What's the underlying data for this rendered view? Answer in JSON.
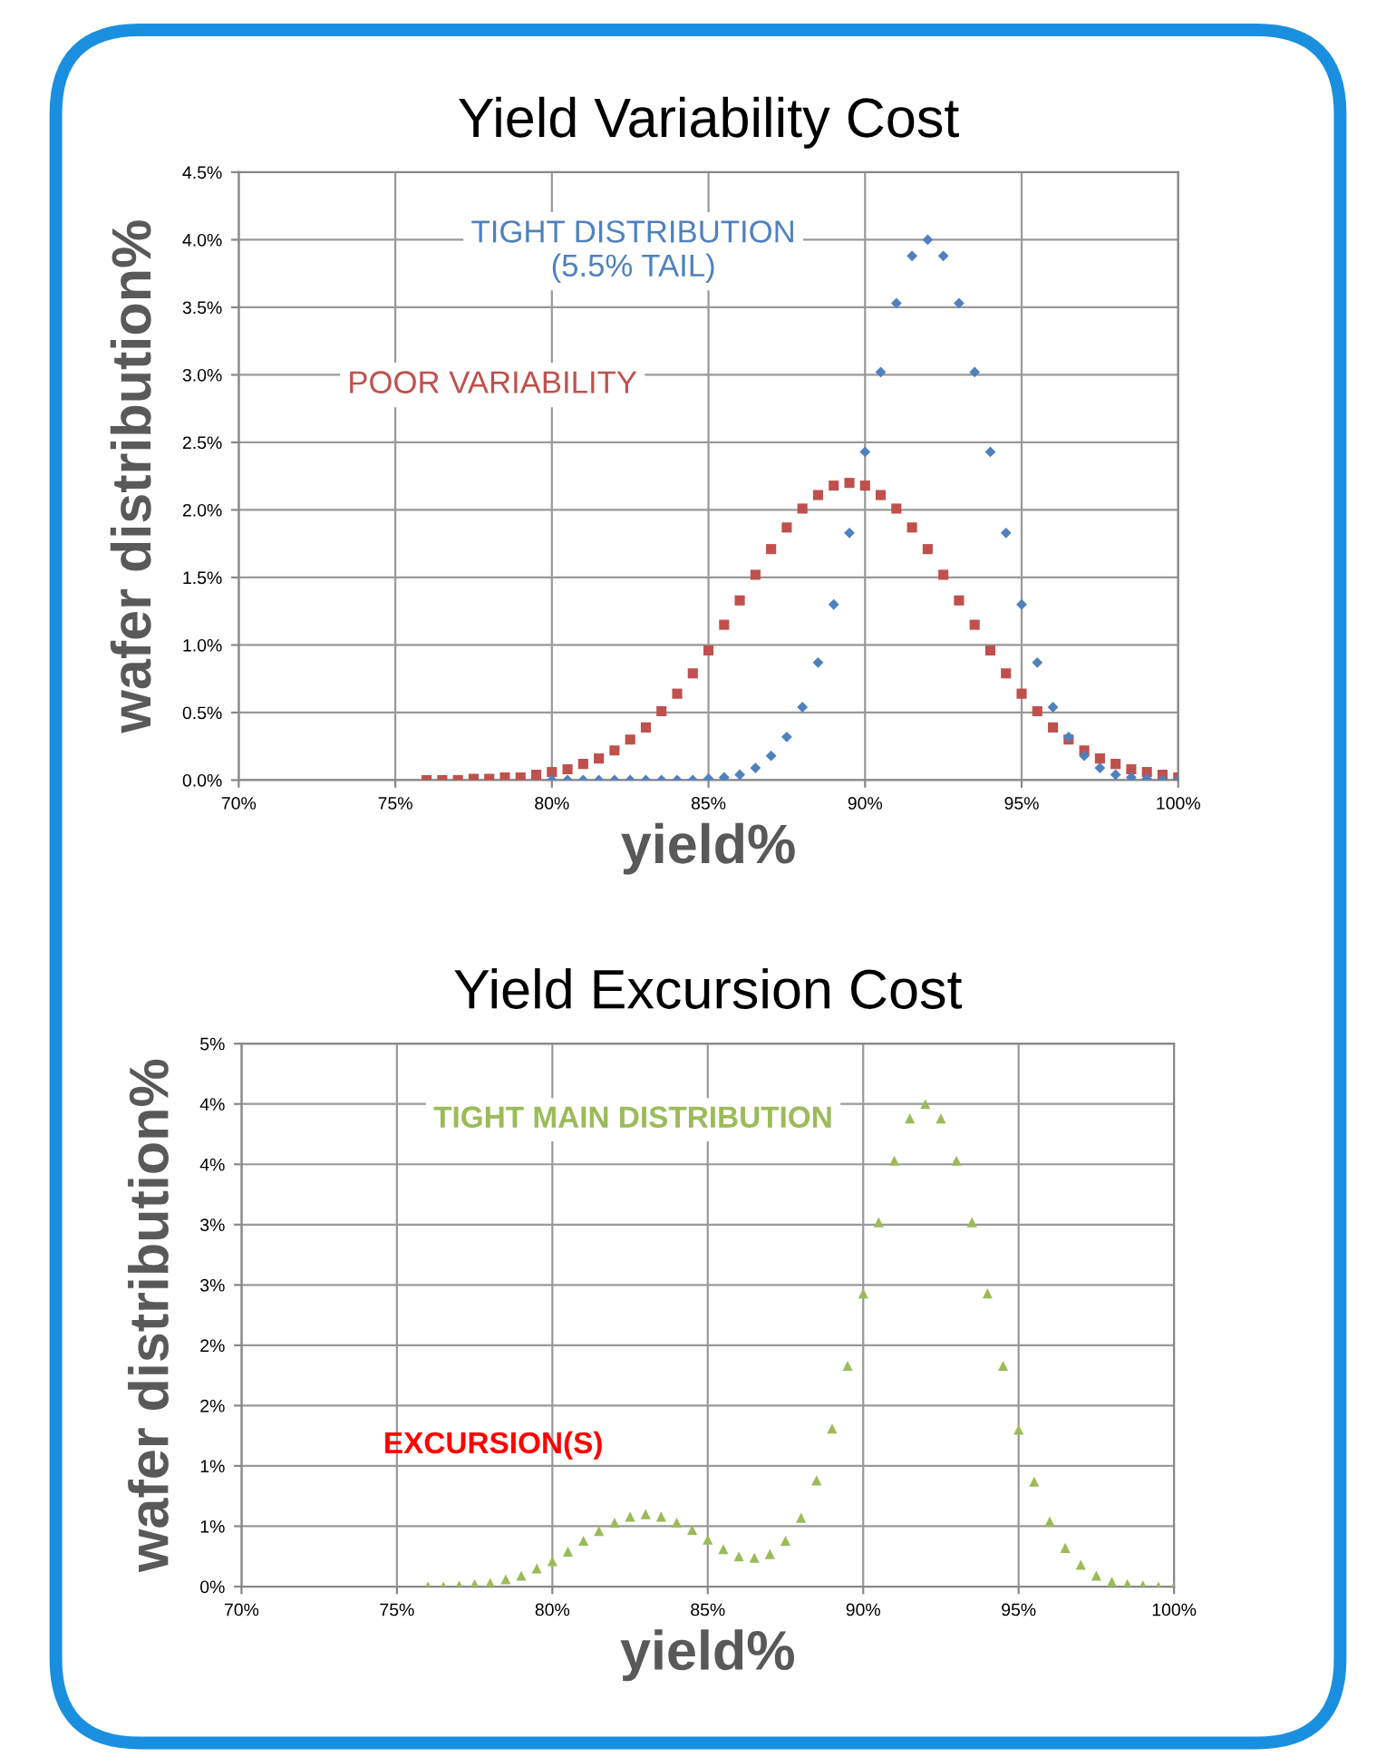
{
  "chart_data": [
    {
      "type": "scatter",
      "title": "Yield Variability Cost",
      "xlabel": "yield%",
      "ylabel": "wafer distribution%",
      "xlim": [
        70,
        100
      ],
      "ylim": [
        0,
        4.5
      ],
      "xticks": [
        {
          "value": 70,
          "label": "70%"
        },
        {
          "value": 75,
          "label": "75%"
        },
        {
          "value": 80,
          "label": "80%"
        },
        {
          "value": 85,
          "label": "85%"
        },
        {
          "value": 90,
          "label": "90%"
        },
        {
          "value": 95,
          "label": "95%"
        },
        {
          "value": 100,
          "label": "100%"
        }
      ],
      "yticks": [
        {
          "value": 0,
          "label": "0.0%"
        },
        {
          "value": 0.5,
          "label": "0.5%"
        },
        {
          "value": 1,
          "label": "1.0%"
        },
        {
          "value": 1.5,
          "label": "1.5%"
        },
        {
          "value": 2,
          "label": "2.0%"
        },
        {
          "value": 2.5,
          "label": "2.5%"
        },
        {
          "value": 3,
          "label": "3.0%"
        },
        {
          "value": 3.5,
          "label": "3.5%"
        },
        {
          "value": 4,
          "label": "4.0%"
        },
        {
          "value": 4.5,
          "label": "4.5%"
        }
      ],
      "grid": true,
      "series": [
        {
          "name": "POOR VARIABILITY",
          "color": "#c0504d",
          "marker": "square",
          "x": [
            76,
            76.5,
            77,
            77.5,
            78,
            78.5,
            79,
            79.5,
            80,
            80.5,
            81,
            81.5,
            82,
            82.5,
            83,
            83.5,
            84,
            84.5,
            85,
            85.5,
            86,
            86.5,
            87,
            87.5,
            88,
            88.5,
            89,
            89.5,
            90,
            90.5,
            91,
            91.5,
            92,
            92.5,
            93,
            93.5,
            94,
            94.5,
            95,
            95.5,
            96,
            96.5,
            97,
            97.5,
            98,
            98.5,
            99,
            99.5,
            100
          ],
          "values": [
            0.0,
            0.0,
            0.0,
            0.01,
            0.01,
            0.02,
            0.02,
            0.04,
            0.06,
            0.08,
            0.12,
            0.16,
            0.22,
            0.3,
            0.39,
            0.51,
            0.64,
            0.79,
            0.96,
            1.15,
            1.33,
            1.52,
            1.71,
            1.87,
            2.01,
            2.11,
            2.18,
            2.2,
            2.18,
            2.11,
            2.01,
            1.87,
            1.71,
            1.52,
            1.33,
            1.15,
            0.96,
            0.79,
            0.64,
            0.51,
            0.39,
            0.3,
            0.22,
            0.16,
            0.12,
            0.08,
            0.06,
            0.04,
            0.02
          ]
        },
        {
          "name": "TIGHT DISTRIBUTION\n(5.5% TAIL)",
          "color": "#4f81bd",
          "marker": "diamond",
          "x": [
            80,
            80.5,
            81,
            81.5,
            82,
            82.5,
            83,
            83.5,
            84,
            84.5,
            85,
            85.5,
            86,
            86.5,
            87,
            87.5,
            88,
            88.5,
            89,
            89.5,
            90,
            90.5,
            91,
            91.5,
            92,
            92.5,
            93,
            93.5,
            94,
            94.5,
            95,
            95.5,
            96,
            96.5,
            97,
            97.5,
            98,
            98.5,
            99,
            99.5,
            100
          ],
          "values": [
            0.0,
            0.0,
            0.0,
            0.0,
            0.0,
            0.0,
            0.0,
            0.0,
            0.0,
            0.0,
            0.01,
            0.02,
            0.04,
            0.09,
            0.18,
            0.32,
            0.54,
            0.87,
            1.3,
            1.83,
            2.43,
            3.02,
            3.53,
            3.88,
            4.0,
            3.88,
            3.53,
            3.02,
            2.43,
            1.83,
            1.3,
            0.87,
            0.54,
            0.32,
            0.18,
            0.09,
            0.04,
            0.02,
            0.01,
            0.0,
            0.0
          ]
        }
      ]
    },
    {
      "type": "scatter",
      "title": "Yield Excursion Cost",
      "xlabel": "yield%",
      "ylabel": "wafer distribution%",
      "xlim": [
        70,
        100
      ],
      "ylim": [
        0,
        4.5
      ],
      "xticks": [
        {
          "value": 70,
          "label": "70%"
        },
        {
          "value": 75,
          "label": "75%"
        },
        {
          "value": 80,
          "label": "80%"
        },
        {
          "value": 85,
          "label": "85%"
        },
        {
          "value": 90,
          "label": "90%"
        },
        {
          "value": 95,
          "label": "95%"
        },
        {
          "value": 100,
          "label": "100%"
        }
      ],
      "yticks": [
        {
          "value": 0,
          "label": "0%"
        },
        {
          "value": 0.5,
          "label": "1%"
        },
        {
          "value": 1,
          "label": "1%"
        },
        {
          "value": 1.5,
          "label": "2%"
        },
        {
          "value": 2,
          "label": "2%"
        },
        {
          "value": 2.5,
          "label": "3%"
        },
        {
          "value": 3,
          "label": "3%"
        },
        {
          "value": 3.5,
          "label": "4%"
        },
        {
          "value": 4,
          "label": "4%"
        },
        {
          "value": 4.5,
          "label": "5%"
        }
      ],
      "grid": true,
      "annotations": [
        "EXCURSION(S)"
      ],
      "series": [
        {
          "name": "TIGHT MAIN DISTRIBUTION",
          "color": "#9bbb59",
          "marker": "triangle",
          "x": [
            76,
            76.5,
            77,
            77.5,
            78,
            78.5,
            79,
            79.5,
            80,
            80.5,
            81,
            81.5,
            82,
            82.5,
            83,
            83.5,
            84,
            84.5,
            85,
            85.5,
            86,
            86.5,
            87,
            87.5,
            88,
            88.5,
            89,
            89.5,
            90,
            90.5,
            91,
            91.5,
            92,
            92.5,
            93,
            93.5,
            94,
            94.5,
            95,
            95.5,
            96,
            96.5,
            97,
            97.5,
            98,
            98.5,
            99,
            99.5,
            100
          ],
          "values": [
            0.0,
            0.0,
            0.01,
            0.02,
            0.03,
            0.06,
            0.09,
            0.15,
            0.21,
            0.29,
            0.38,
            0.46,
            0.53,
            0.58,
            0.6,
            0.58,
            0.53,
            0.47,
            0.39,
            0.31,
            0.25,
            0.24,
            0.27,
            0.38,
            0.57,
            0.88,
            1.31,
            1.83,
            2.43,
            3.02,
            3.53,
            3.88,
            4.0,
            3.88,
            3.53,
            3.02,
            2.43,
            1.83,
            1.3,
            0.87,
            0.54,
            0.32,
            0.18,
            0.09,
            0.04,
            0.02,
            0.01,
            0.0,
            0.0
          ]
        }
      ]
    }
  ]
}
